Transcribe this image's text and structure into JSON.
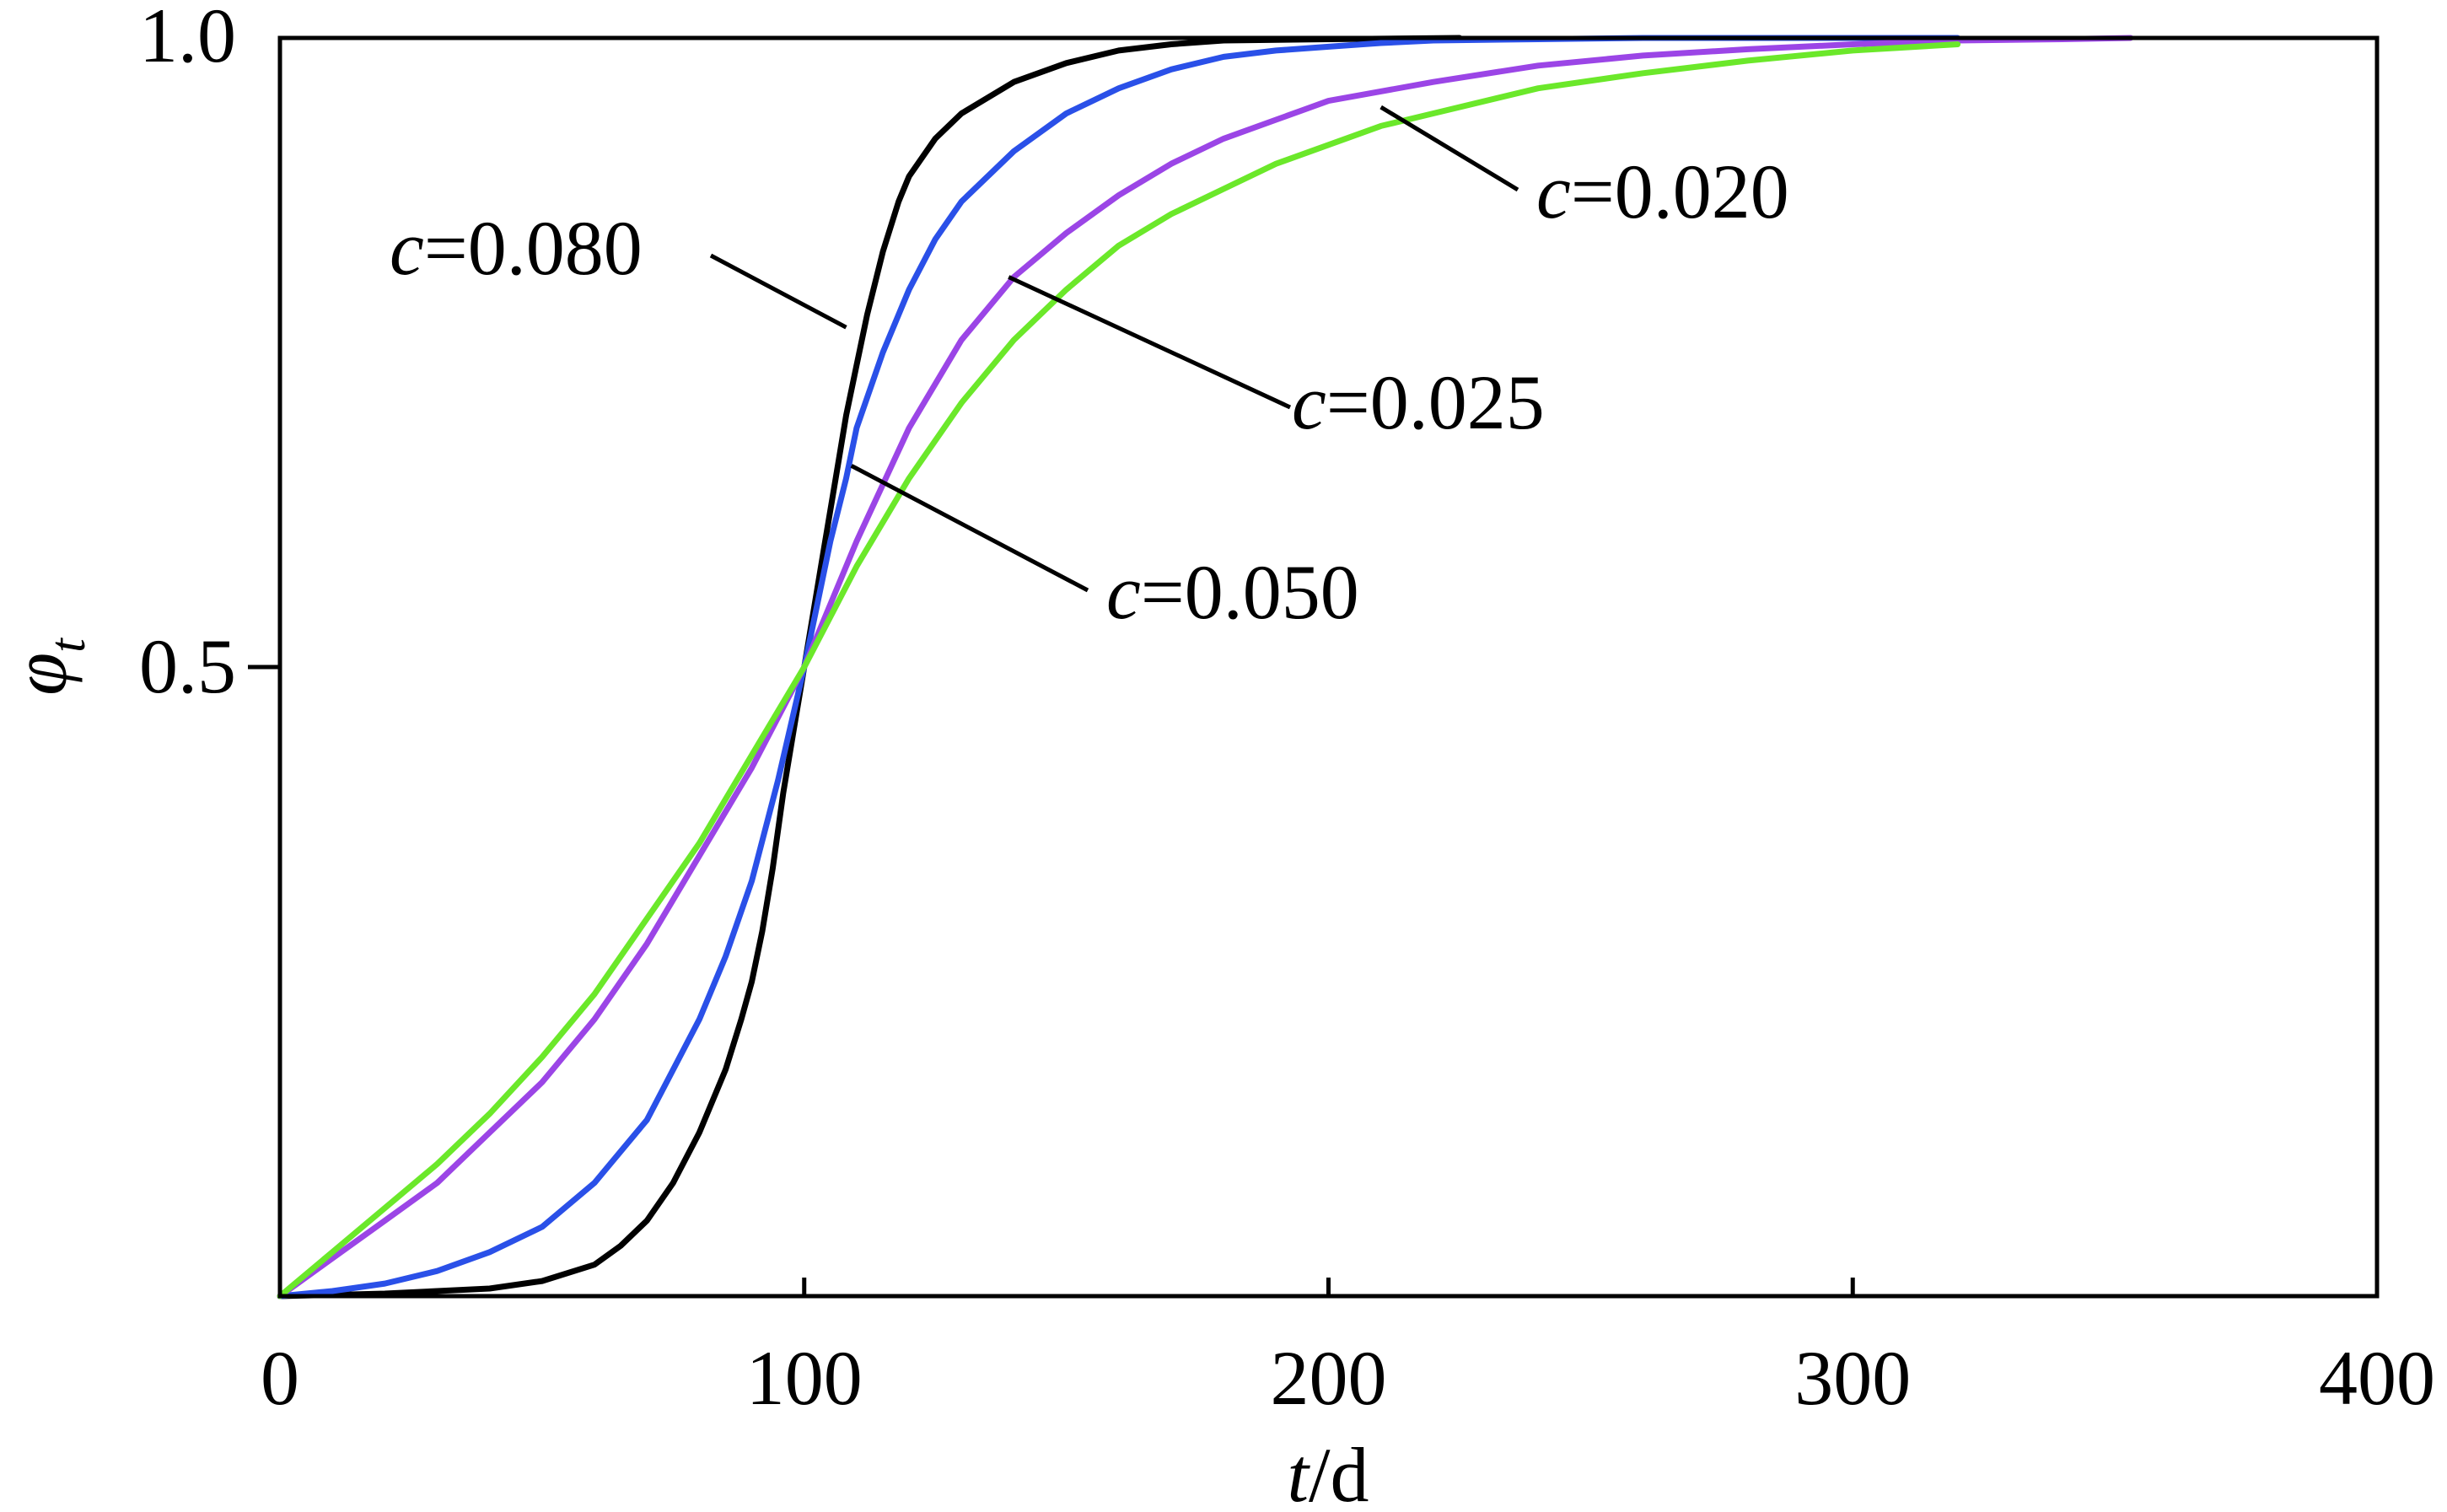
{
  "chart_data": {
    "type": "line",
    "title": "",
    "xlabel": {
      "var": "t",
      "unit": "/d"
    },
    "ylabel": {
      "var": "φ",
      "sub": "t"
    },
    "xlim": [
      0,
      400
    ],
    "ylim": [
      0,
      1
    ],
    "xticks": [
      "0",
      "100",
      "200",
      "300",
      "400"
    ],
    "xtick_values": [
      0,
      100,
      200,
      300,
      400
    ],
    "yticks": [
      "0.5",
      "1.0"
    ],
    "ytick_values": [
      0.5,
      1.0
    ],
    "grid": false,
    "legend": "none",
    "series": [
      {
        "label": {
          "var": "c",
          "value": "=0.080"
        },
        "color": "#000000",
        "x": [
          0,
          20,
          40,
          50,
          60,
          65,
          70,
          75,
          80,
          85,
          88,
          90,
          92,
          94,
          96,
          98,
          100,
          102,
          104,
          106,
          108,
          110,
          112,
          115,
          118,
          120,
          125,
          130,
          140,
          150,
          160,
          170,
          180,
          200,
          225
        ],
        "y": [
          0.0,
          0.002,
          0.006,
          0.012,
          0.025,
          0.04,
          0.06,
          0.09,
          0.13,
          0.18,
          0.22,
          0.25,
          0.29,
          0.34,
          0.4,
          0.45,
          0.5,
          0.55,
          0.6,
          0.65,
          0.7,
          0.74,
          0.78,
          0.83,
          0.87,
          0.89,
          0.92,
          0.94,
          0.965,
          0.98,
          0.99,
          0.995,
          0.998,
          0.999,
          1.0
        ]
      },
      {
        "label": {
          "var": "c",
          "value": "=0.050"
        },
        "color": "#2A50E8",
        "x": [
          0,
          10,
          20,
          30,
          40,
          50,
          60,
          70,
          80,
          85,
          90,
          95,
          100,
          105,
          108,
          110,
          115,
          120,
          125,
          130,
          140,
          150,
          160,
          170,
          180,
          190,
          200,
          210,
          220,
          240,
          260,
          280,
          300,
          320
        ],
        "y": [
          0.0,
          0.004,
          0.01,
          0.02,
          0.035,
          0.055,
          0.09,
          0.14,
          0.22,
          0.27,
          0.33,
          0.41,
          0.5,
          0.6,
          0.65,
          0.69,
          0.75,
          0.8,
          0.84,
          0.87,
          0.91,
          0.94,
          0.96,
          0.975,
          0.985,
          0.99,
          0.993,
          0.996,
          0.998,
          0.999,
          1.0,
          1.0,
          1.0,
          1.0
        ]
      },
      {
        "label": {
          "var": "c",
          "value": "=0.025"
        },
        "color": "#9B45E6",
        "x": [
          0,
          10,
          20,
          30,
          40,
          50,
          60,
          70,
          80,
          90,
          100,
          110,
          120,
          130,
          140,
          150,
          160,
          170,
          180,
          190,
          200,
          220,
          240,
          260,
          280,
          300,
          320,
          340,
          353
        ],
        "y": [
          0.0,
          0.03,
          0.06,
          0.09,
          0.13,
          0.17,
          0.22,
          0.28,
          0.35,
          0.42,
          0.5,
          0.6,
          0.69,
          0.76,
          0.81,
          0.845,
          0.875,
          0.9,
          0.92,
          0.935,
          0.95,
          0.965,
          0.978,
          0.986,
          0.991,
          0.995,
          0.998,
          0.999,
          1.0
        ]
      },
      {
        "label": {
          "var": "c",
          "value": "=0.020"
        },
        "color": "#6BE82A",
        "x": [
          0,
          10,
          20,
          30,
          40,
          50,
          60,
          70,
          80,
          90,
          100,
          110,
          120,
          130,
          140,
          150,
          160,
          170,
          180,
          190,
          200,
          210,
          220,
          240,
          260,
          280,
          300,
          320
        ],
        "y": [
          0.0,
          0.035,
          0.07,
          0.105,
          0.145,
          0.19,
          0.24,
          0.3,
          0.36,
          0.43,
          0.5,
          0.58,
          0.65,
          0.71,
          0.76,
          0.8,
          0.835,
          0.86,
          0.88,
          0.9,
          0.915,
          0.93,
          0.94,
          0.96,
          0.972,
          0.982,
          0.99,
          0.995
        ]
      }
    ],
    "annotations": [
      {
        "var": "c",
        "value": "=0.080",
        "series_index": 0,
        "anchor_x": 108,
        "anchor_y": 0.77
      },
      {
        "var": "c",
        "value": "=0.050",
        "series_index": 1,
        "anchor_x": 109,
        "anchor_y": 0.66
      },
      {
        "var": "c",
        "value": "=0.025",
        "series_index": 2,
        "anchor_x": 139,
        "anchor_y": 0.81
      },
      {
        "var": "c",
        "value": "=0.020",
        "series_index": 3,
        "anchor_x": 210,
        "anchor_y": 0.945
      }
    ]
  }
}
